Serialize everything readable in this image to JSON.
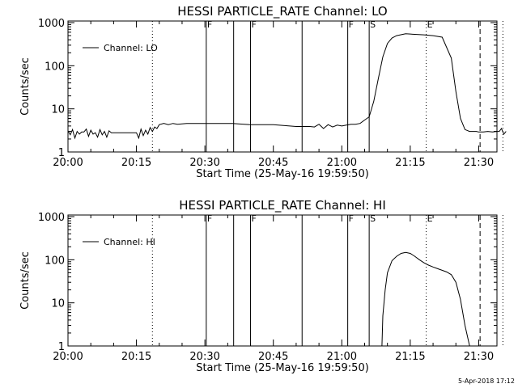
{
  "chart_data": [
    {
      "type": "line",
      "title": "HESSI PARTICLE_RATE Channel: LO",
      "xlabel": "Start Time (25-May-16 19:59:50)",
      "ylabel": "Counts/sec",
      "yscale": "log",
      "xlim": [
        0,
        92
      ],
      "ylim": [
        1,
        1000
      ],
      "x_tick_labels": [
        "20:00",
        "20:15",
        "20:30",
        "20:45",
        "21:00",
        "21:15",
        "21:30"
      ],
      "x_tick_values": [
        0,
        15,
        30,
        45,
        60,
        75,
        90
      ],
      "y_tick_labels": [
        "1",
        "10",
        "100",
        "1000"
      ],
      "y_tick_values": [
        1,
        10,
        100,
        1000
      ],
      "legend": {
        "label": "Channel: LO",
        "placement": "top-left"
      },
      "solid_markers": [
        30.3,
        36.3,
        40,
        51.3,
        61.3,
        66
      ],
      "dotted_markers": [
        18.5,
        78.5,
        95.3
      ],
      "dashed_markers": [
        90.3
      ],
      "flags": [
        {
          "label": "F",
          "x": 30.3
        },
        {
          "label": "F",
          "x": 40
        },
        {
          "label": "F",
          "x": 61.3
        },
        {
          "label": "S",
          "x": 66
        },
        {
          "label": "E",
          "x": 78.5
        }
      ],
      "series": [
        {
          "x": [
            0,
            0.5,
            1,
            1.5,
            2,
            2.5,
            3,
            3.5,
            4,
            4.5,
            5,
            5.5,
            6,
            6.5,
            7,
            7.5,
            8,
            8.5,
            9,
            9.5,
            10,
            15,
            15.5,
            16,
            16.5,
            17,
            17.5,
            18,
            18.5,
            19,
            19.5,
            20,
            21,
            22,
            23,
            24,
            26,
            28,
            30,
            36,
            40,
            45,
            50,
            51.3,
            53,
            54,
            55,
            56,
            57,
            58,
            59,
            60,
            61,
            62,
            63,
            64,
            65,
            66,
            67,
            68,
            69,
            70,
            71,
            72,
            74,
            78,
            80,
            82,
            84,
            85,
            86,
            87,
            88,
            89,
            89.5,
            90,
            91,
            92,
            93,
            94,
            94.5,
            95,
            95.5,
            96
          ],
          "y": [
            3.1,
            2.5,
            3.3,
            2.1,
            3.0,
            2.6,
            2.9,
            2.9,
            3.4,
            2.3,
            3.2,
            2.6,
            2.8,
            2.2,
            3.3,
            2.5,
            3.0,
            2.2,
            3.1,
            2.8,
            2.8,
            2.8,
            2.1,
            3.4,
            2.4,
            3.2,
            2.6,
            3.7,
            3.0,
            3.8,
            3.5,
            4.3,
            4.6,
            4.3,
            4.6,
            4.4,
            4.6,
            4.6,
            4.6,
            4.6,
            4.3,
            4.3,
            3.9,
            3.9,
            3.9,
            3.8,
            4.4,
            3.5,
            4.3,
            3.8,
            4.2,
            4.0,
            4.2,
            4.4,
            4.4,
            4.6,
            5.5,
            6.5,
            15,
            50,
            160,
            330,
            440,
            500,
            550,
            520,
            500,
            460,
            150,
            25,
            6,
            3.3,
            3.0,
            3.0,
            3.0,
            2.9,
            2.9,
            3.0,
            2.9,
            3.0,
            3.0,
            3.5,
            2.6,
            3.0
          ]
        }
      ]
    },
    {
      "type": "line",
      "title": "HESSI PARTICLE_RATE Channel: HI",
      "xlabel": "Start Time (25-May-16 19:59:50)",
      "ylabel": "Counts/sec",
      "yscale": "log",
      "xlim": [
        0,
        92
      ],
      "ylim": [
        1,
        1000
      ],
      "x_tick_labels": [
        "20:00",
        "20:15",
        "20:30",
        "20:45",
        "21:00",
        "21:15",
        "21:30"
      ],
      "x_tick_values": [
        0,
        15,
        30,
        45,
        60,
        75,
        90
      ],
      "y_tick_labels": [
        "1",
        "10",
        "100",
        "1000"
      ],
      "y_tick_values": [
        1,
        10,
        100,
        1000
      ],
      "legend": {
        "label": "Channel: HI",
        "placement": "top-left"
      },
      "solid_markers": [
        30.3,
        36.3,
        40,
        51.3,
        61.3,
        66
      ],
      "dotted_markers": [
        18.5,
        78.5,
        95.3
      ],
      "dashed_markers": [
        90.3
      ],
      "flags": [
        {
          "label": "F",
          "x": 30.3
        },
        {
          "label": "F",
          "x": 40
        },
        {
          "label": "F",
          "x": 61.3
        },
        {
          "label": "S",
          "x": 66
        },
        {
          "label": "E",
          "x": 78.5
        }
      ],
      "series": [
        {
          "x": [
            68.8,
            69,
            69.5,
            70,
            71,
            72,
            73,
            74,
            75,
            76,
            77,
            78,
            79,
            80,
            81,
            82,
            83,
            84,
            85,
            86,
            87,
            88
          ],
          "y": [
            1,
            5,
            20,
            50,
            95,
            120,
            140,
            148,
            140,
            120,
            100,
            85,
            75,
            68,
            62,
            57,
            52,
            45,
            30,
            12,
            3,
            1
          ]
        }
      ]
    }
  ],
  "timestamp": "5-Apr-2018 17:12"
}
